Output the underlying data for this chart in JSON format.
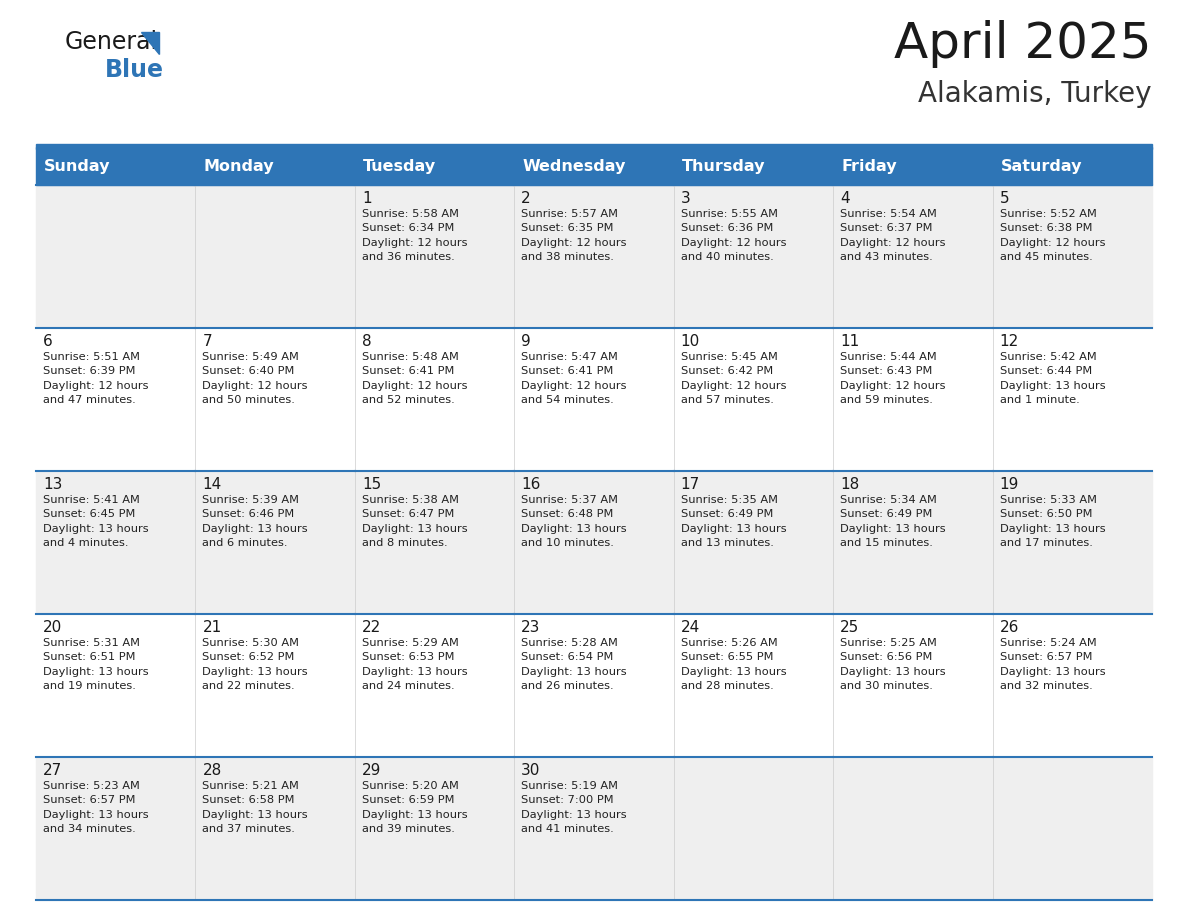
{
  "title": "April 2025",
  "subtitle": "Alakamis, Turkey",
  "header_bg": "#2E75B6",
  "header_text_color": "#FFFFFF",
  "row_line_color": "#2E75B6",
  "cell_bg_light": "#EFEFEF",
  "cell_bg_white": "#FFFFFF",
  "days_of_week": [
    "Sunday",
    "Monday",
    "Tuesday",
    "Wednesday",
    "Thursday",
    "Friday",
    "Saturday"
  ],
  "calendar": [
    [
      "",
      "",
      "1\nSunrise: 5:58 AM\nSunset: 6:34 PM\nDaylight: 12 hours\nand 36 minutes.",
      "2\nSunrise: 5:57 AM\nSunset: 6:35 PM\nDaylight: 12 hours\nand 38 minutes.",
      "3\nSunrise: 5:55 AM\nSunset: 6:36 PM\nDaylight: 12 hours\nand 40 minutes.",
      "4\nSunrise: 5:54 AM\nSunset: 6:37 PM\nDaylight: 12 hours\nand 43 minutes.",
      "5\nSunrise: 5:52 AM\nSunset: 6:38 PM\nDaylight: 12 hours\nand 45 minutes."
    ],
    [
      "6\nSunrise: 5:51 AM\nSunset: 6:39 PM\nDaylight: 12 hours\nand 47 minutes.",
      "7\nSunrise: 5:49 AM\nSunset: 6:40 PM\nDaylight: 12 hours\nand 50 minutes.",
      "8\nSunrise: 5:48 AM\nSunset: 6:41 PM\nDaylight: 12 hours\nand 52 minutes.",
      "9\nSunrise: 5:47 AM\nSunset: 6:41 PM\nDaylight: 12 hours\nand 54 minutes.",
      "10\nSunrise: 5:45 AM\nSunset: 6:42 PM\nDaylight: 12 hours\nand 57 minutes.",
      "11\nSunrise: 5:44 AM\nSunset: 6:43 PM\nDaylight: 12 hours\nand 59 minutes.",
      "12\nSunrise: 5:42 AM\nSunset: 6:44 PM\nDaylight: 13 hours\nand 1 minute."
    ],
    [
      "13\nSunrise: 5:41 AM\nSunset: 6:45 PM\nDaylight: 13 hours\nand 4 minutes.",
      "14\nSunrise: 5:39 AM\nSunset: 6:46 PM\nDaylight: 13 hours\nand 6 minutes.",
      "15\nSunrise: 5:38 AM\nSunset: 6:47 PM\nDaylight: 13 hours\nand 8 minutes.",
      "16\nSunrise: 5:37 AM\nSunset: 6:48 PM\nDaylight: 13 hours\nand 10 minutes.",
      "17\nSunrise: 5:35 AM\nSunset: 6:49 PM\nDaylight: 13 hours\nand 13 minutes.",
      "18\nSunrise: 5:34 AM\nSunset: 6:49 PM\nDaylight: 13 hours\nand 15 minutes.",
      "19\nSunrise: 5:33 AM\nSunset: 6:50 PM\nDaylight: 13 hours\nand 17 minutes."
    ],
    [
      "20\nSunrise: 5:31 AM\nSunset: 6:51 PM\nDaylight: 13 hours\nand 19 minutes.",
      "21\nSunrise: 5:30 AM\nSunset: 6:52 PM\nDaylight: 13 hours\nand 22 minutes.",
      "22\nSunrise: 5:29 AM\nSunset: 6:53 PM\nDaylight: 13 hours\nand 24 minutes.",
      "23\nSunrise: 5:28 AM\nSunset: 6:54 PM\nDaylight: 13 hours\nand 26 minutes.",
      "24\nSunrise: 5:26 AM\nSunset: 6:55 PM\nDaylight: 13 hours\nand 28 minutes.",
      "25\nSunrise: 5:25 AM\nSunset: 6:56 PM\nDaylight: 13 hours\nand 30 minutes.",
      "26\nSunrise: 5:24 AM\nSunset: 6:57 PM\nDaylight: 13 hours\nand 32 minutes."
    ],
    [
      "27\nSunrise: 5:23 AM\nSunset: 6:57 PM\nDaylight: 13 hours\nand 34 minutes.",
      "28\nSunrise: 5:21 AM\nSunset: 6:58 PM\nDaylight: 13 hours\nand 37 minutes.",
      "29\nSunrise: 5:20 AM\nSunset: 6:59 PM\nDaylight: 13 hours\nand 39 minutes.",
      "30\nSunrise: 5:19 AM\nSunset: 7:00 PM\nDaylight: 13 hours\nand 41 minutes.",
      "",
      "",
      ""
    ]
  ],
  "num_rows": 5,
  "num_cols": 7,
  "fig_width": 11.88,
  "fig_height": 9.18
}
